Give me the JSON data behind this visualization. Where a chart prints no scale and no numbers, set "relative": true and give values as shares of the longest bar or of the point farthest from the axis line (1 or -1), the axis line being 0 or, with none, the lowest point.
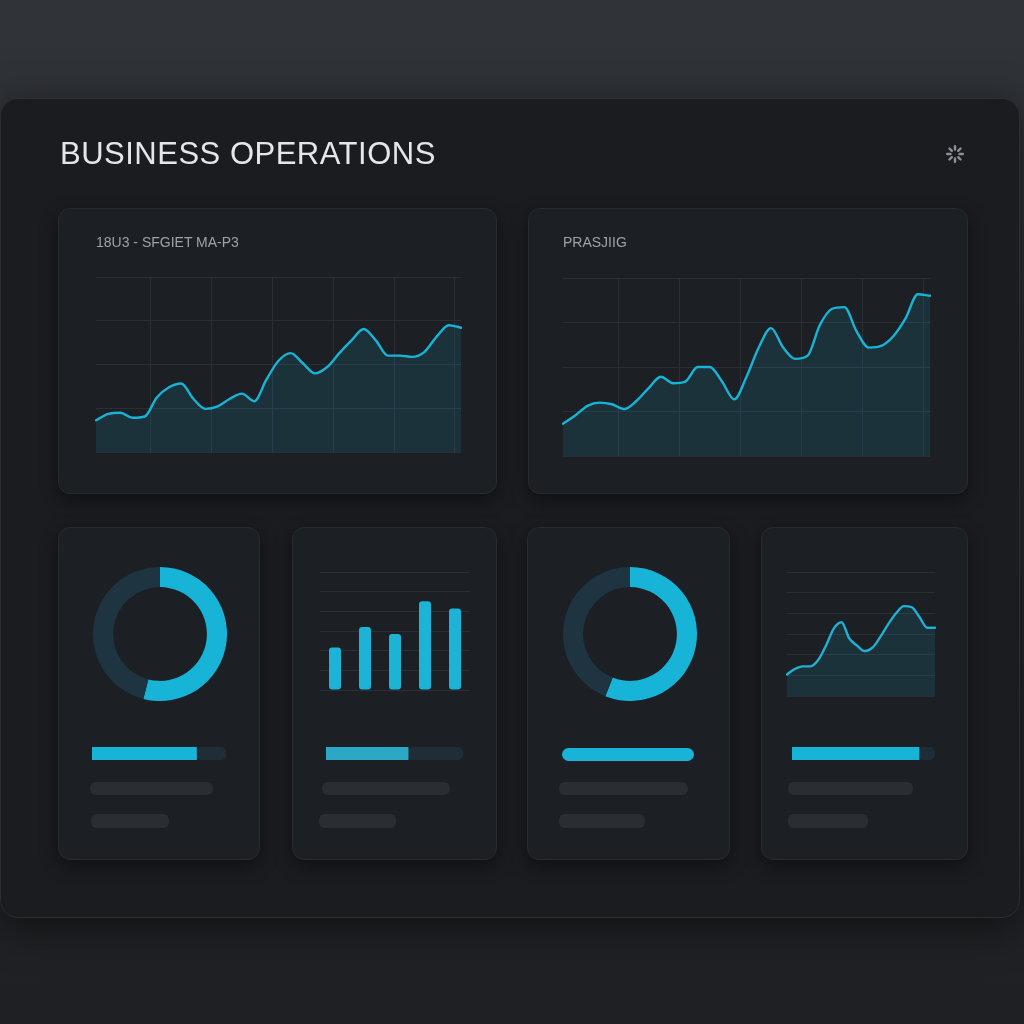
{
  "chart_data": [
    {
      "type": "other",
      "title": "BUSINESS OPERATIONS"
    },
    {
      "type": "area",
      "title": "18U3 - SFGIET MA-P3",
      "categories": [
        null,
        null,
        null,
        null,
        null,
        null,
        null,
        null,
        null,
        null,
        null,
        null,
        null,
        null,
        null,
        null,
        null,
        null,
        null,
        null,
        null,
        null,
        null,
        null,
        null,
        null,
        null,
        null,
        null,
        null,
        null
      ],
      "values": [
        0.25,
        0.3,
        0.31,
        0.27,
        0.28,
        0.43,
        0.51,
        0.54,
        0.42,
        0.34,
        0.36,
        0.42,
        0.46,
        0.4,
        0.57,
        0.72,
        0.78,
        0.7,
        0.62,
        0.67,
        0.78,
        0.88,
        0.97,
        0.88,
        0.76,
        0.76,
        0.75,
        0.79,
        0.91,
        1,
        0.98
      ],
      "color": "#18b4d8",
      "relative": true,
      "grid": true,
      "marker": "none"
    },
    {
      "type": "area",
      "title": "PRASJIIG",
      "categories": [
        null,
        null,
        null,
        null,
        null,
        null,
        null,
        null,
        null,
        null,
        null,
        null,
        null,
        null,
        null,
        null,
        null,
        null,
        null,
        null,
        null,
        null,
        null,
        null,
        null,
        null,
        null,
        null,
        null,
        null,
        null
      ],
      "values": [
        0.2,
        0.25,
        0.31,
        0.33,
        0.32,
        0.29,
        0.34,
        0.42,
        0.49,
        0.45,
        0.46,
        0.55,
        0.55,
        0.46,
        0.35,
        0.49,
        0.67,
        0.79,
        0.67,
        0.6,
        0.62,
        0.81,
        0.91,
        0.92,
        0.77,
        0.67,
        0.68,
        0.74,
        0.85,
        1,
        0.99
      ],
      "color": "#18b4d8",
      "relative": true,
      "grid": true,
      "marker": "none"
    },
    {
      "type": "donut",
      "categories": [
        null,
        null
      ],
      "values": [
        54,
        46
      ],
      "colors": [
        "#18b4d8",
        "#1f3441"
      ]
    },
    {
      "type": "bar",
      "orientation": "horizontal",
      "stacked": true,
      "relative": true,
      "categories": [
        null
      ],
      "series": [
        {
          "color": "#18b4d8",
          "values": [
            0.78
          ]
        },
        {
          "color": "#1f2d36",
          "values": [
            0.22
          ]
        }
      ]
    },
    {
      "type": "bar",
      "categories": [
        null,
        null,
        null,
        null,
        null
      ],
      "values": [
        0.48,
        0.71,
        0.63,
        1,
        0.92
      ],
      "color": "#1cb3d6",
      "relative": true,
      "grid": "y"
    },
    {
      "type": "bar",
      "orientation": "horizontal",
      "stacked": true,
      "relative": true,
      "categories": [
        null
      ],
      "series": [
        {
          "color": "#2ba8c6",
          "values": [
            0.6
          ]
        },
        {
          "color": "#1f2d36",
          "values": [
            0.4
          ]
        }
      ]
    },
    {
      "type": "donut",
      "categories": [
        null,
        null
      ],
      "values": [
        56,
        44
      ],
      "colors": [
        "#18b4d8",
        "#1f3441"
      ]
    },
    {
      "type": "area",
      "categories": [
        null,
        null,
        null,
        null,
        null,
        null,
        null,
        null,
        null,
        null,
        null,
        null,
        null,
        null,
        null,
        null,
        null,
        null,
        null,
        null
      ],
      "values": [
        0.24,
        0.3,
        0.33,
        0.33,
        0.4,
        0.56,
        0.75,
        0.82,
        0.64,
        0.56,
        0.5,
        0.54,
        0.66,
        0.8,
        0.92,
        1,
        0.99,
        0.88,
        0.76,
        0.76
      ],
      "color": "#1fb0d2",
      "relative": true,
      "grid": "y",
      "marker": "none"
    },
    {
      "type": "bar",
      "orientation": "horizontal",
      "stacked": true,
      "relative": true,
      "categories": [
        null
      ],
      "series": [
        {
          "color": "#18b4d8",
          "values": [
            0.89
          ]
        },
        {
          "color": "#1f2d36",
          "values": [
            0.11
          ]
        }
      ]
    }
  ]
}
